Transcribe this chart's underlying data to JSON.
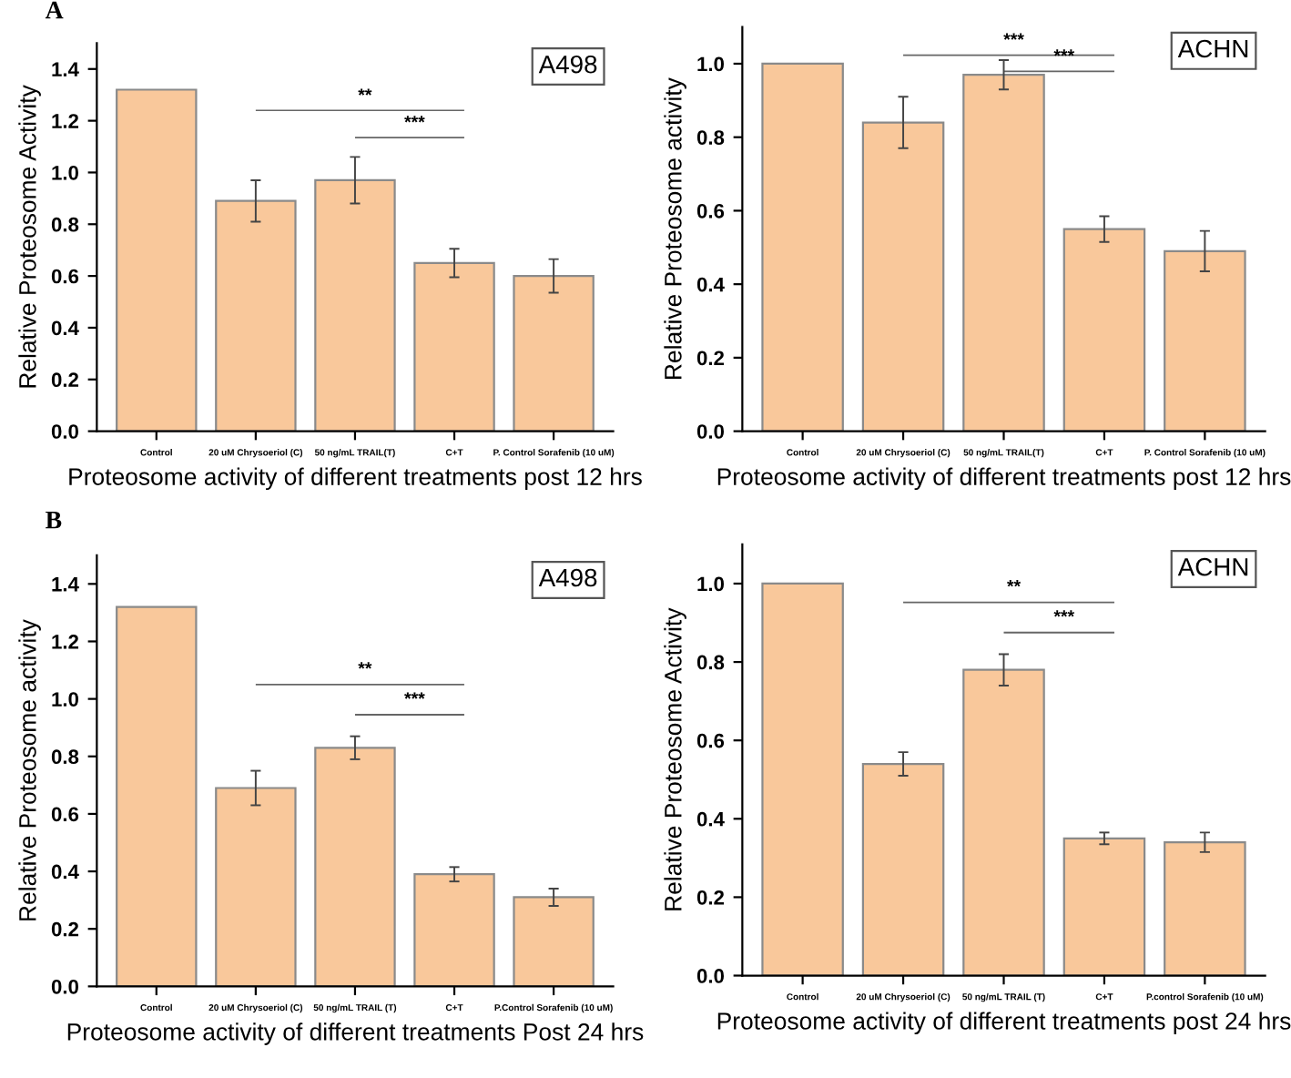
{
  "chart_data": [
    {
      "type": "bar",
      "title": "A",
      "subtitle": "A498",
      "xlabel": "Proteosome activity of different treatments post 12 hrs",
      "ylabel": "Relative Proteosome Activity",
      "categories": [
        "Control",
        "20 uM Chrysoeriol (C)",
        "50 ng/mL TRAIL(T)",
        "C+T",
        "P. Control Sorafenib (10 uM)"
      ],
      "values": [
        1.32,
        0.89,
        0.97,
        0.65,
        0.6
      ],
      "errors": [
        null,
        0.08,
        0.09,
        0.055,
        0.065
      ],
      "color": "#f9c89b",
      "ylim": [
        0,
        1.5
      ],
      "yticks": [
        {
          "value": 0,
          "label": "0.0"
        },
        {
          "value": 0.2,
          "label": "0.2"
        },
        {
          "value": 0.4,
          "label": "0.4"
        },
        {
          "value": 0.6,
          "label": "0.6"
        },
        {
          "value": 0.8,
          "label": "0.8"
        },
        {
          "value": 1.0,
          "label": "1.0"
        },
        {
          "value": 1.2,
          "label": "1.2"
        },
        {
          "value": 1.4,
          "label": "1.4"
        }
      ],
      "annotations": [
        "**",
        "***"
      ],
      "grid": false,
      "legend": false
    },
    {
      "type": "bar",
      "subtitle": "ACHN",
      "xlabel": "Proteosome activity of different treatments post 12 hrs",
      "ylabel": "Relative Proteosome activity",
      "categories": [
        "Control",
        "20 uM Chrysoeriol (C)",
        "50 ng/mL TRAIL(T)",
        "C+T",
        "P. Control Sorafenib (10 uM)"
      ],
      "values": [
        1.0,
        0.84,
        0.97,
        0.55,
        0.49
      ],
      "errors": [
        null,
        0.07,
        0.04,
        0.035,
        0.055
      ],
      "color": "#f9c89b",
      "ylim": [
        0,
        1.1
      ],
      "yticks": [
        {
          "value": 0,
          "label": "0.0"
        },
        {
          "value": 0.2,
          "label": "0.2"
        },
        {
          "value": 0.4,
          "label": "0.4"
        },
        {
          "value": 0.6,
          "label": "0.6"
        },
        {
          "value": 0.8,
          "label": "0.8"
        },
        {
          "value": 1.0,
          "label": "1.0"
        }
      ],
      "annotations": [
        "***",
        "***"
      ],
      "grid": false,
      "legend": false
    },
    {
      "type": "bar",
      "title": "B",
      "subtitle": "A498",
      "xlabel": "Proteosome activity of different treatments Post 24 hrs",
      "ylabel": "Relative Proteosome activity",
      "categories": [
        "Control",
        "20 uM Chrysoeriol (C)",
        "50 ng/mL TRAIL (T)",
        "C+T",
        "P.Control Sorafenib (10 uM)"
      ],
      "values": [
        1.32,
        0.69,
        0.83,
        0.39,
        0.31
      ],
      "errors": [
        null,
        0.06,
        0.04,
        0.025,
        0.03
      ],
      "color": "#f9c89b",
      "ylim": [
        0,
        1.5
      ],
      "yticks": [
        {
          "value": 0,
          "label": "0.0"
        },
        {
          "value": 0.2,
          "label": "0.2"
        },
        {
          "value": 0.4,
          "label": "0.4"
        },
        {
          "value": 0.6,
          "label": "0.6"
        },
        {
          "value": 0.8,
          "label": "0.8"
        },
        {
          "value": 1.0,
          "label": "1.0"
        },
        {
          "value": 1.2,
          "label": "1.2"
        },
        {
          "value": 1.4,
          "label": "1.4"
        }
      ],
      "annotations": [
        "**",
        "***"
      ],
      "grid": false,
      "legend": false
    },
    {
      "type": "bar",
      "subtitle": "ACHN",
      "xlabel": "Proteosome activity of different treatments post 24 hrs",
      "ylabel": "Relative Proteosome Activity",
      "categories": [
        "Control",
        "20 uM Chrysoeriol (C)",
        "50 ng/mL TRAIL (T)",
        "C+T",
        "P.control Sorafenib (10 uM)"
      ],
      "values": [
        1.0,
        0.54,
        0.78,
        0.35,
        0.34
      ],
      "errors": [
        null,
        0.03,
        0.04,
        0.015,
        0.025
      ],
      "color": "#f9c89b",
      "ylim": [
        0,
        1.1
      ],
      "yticks": [
        {
          "value": 0,
          "label": "0.0"
        },
        {
          "value": 0.2,
          "label": "0.2"
        },
        {
          "value": 0.4,
          "label": "0.4"
        },
        {
          "value": 0.6,
          "label": "0.6"
        },
        {
          "value": 0.8,
          "label": "0.8"
        },
        {
          "value": 1.0,
          "label": "1.0"
        }
      ],
      "annotations": [
        "**",
        "***"
      ],
      "grid": false,
      "legend": false
    }
  ]
}
